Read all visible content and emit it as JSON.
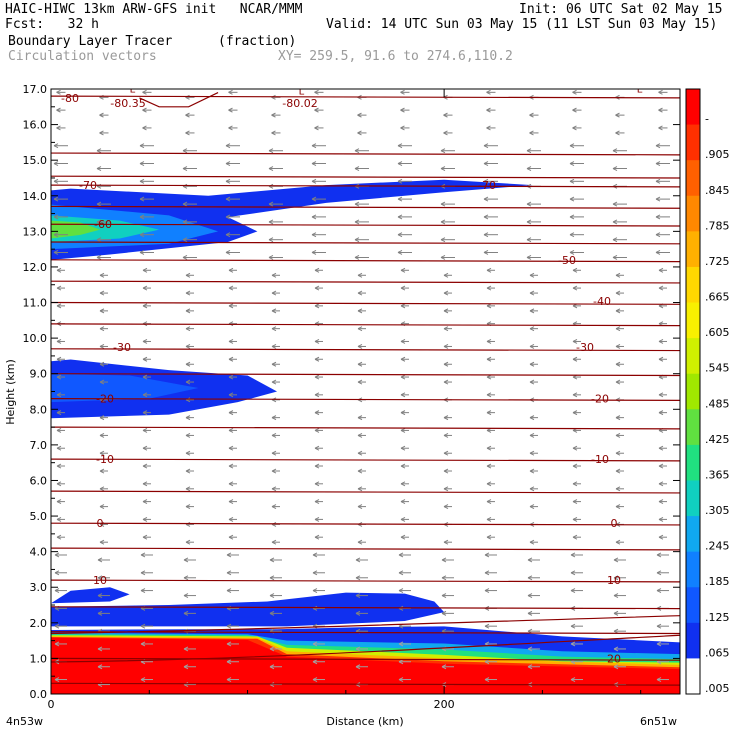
{
  "header": {
    "line1_left": "HAIC-HIWC 13km ARW-GFS init   NCAR/MMM",
    "line1_right": "Init: 06 UTC Sat 02 May 15",
    "line2_left": "Fcst:   32 h",
    "line2_right": "Valid: 14 UTC Sun 03 May 15 (11 LST Sun 03 May 15)",
    "line3_left": "Boundary Layer Tracer",
    "line3_unit": "(fraction)",
    "line4_left": "Circulation vectors",
    "line4_xy": "XY= 259.5, 91.6 to 274.6,110.2"
  },
  "axes": {
    "ylabel": "Height (km)",
    "xlabel": "Distance (km)",
    "x_left": "4n53w",
    "x_right": "6n51w",
    "x_ticks": [
      "0",
      "200"
    ],
    "y_ticks": [
      "0.0",
      "1.0",
      "2.0",
      "3.0",
      "4.0",
      "5.0",
      "6.0",
      "7.0",
      "8.0",
      "9.0",
      "10.0",
      "11.0",
      "12.0",
      "13.0",
      "14.0",
      "15.0",
      "16.0",
      "17.0"
    ]
  },
  "colorbar": {
    "labels": [
      "-",
      ".905",
      ".845",
      ".785",
      ".725",
      ".665",
      ".605",
      ".545",
      ".485",
      ".425",
      ".365",
      ".305",
      ".245",
      ".185",
      ".125",
      ".065",
      ".005"
    ],
    "colors": [
      "#ff0000",
      "#ff3000",
      "#ff6000",
      "#ff8800",
      "#ffb000",
      "#ffd800",
      "#f8f000",
      "#d0f000",
      "#a0e800",
      "#60e040",
      "#20e080",
      "#10d0c0",
      "#10a8f0",
      "#1080ff",
      "#1058ff",
      "#1030f0",
      "#ffffff"
    ]
  },
  "chart_data": {
    "type": "contour",
    "title": "Boundary Layer Tracer",
    "units": "fraction",
    "xlabel": "Distance (km)",
    "ylabel": "Height (km)",
    "xlim": [
      0,
      320
    ],
    "ylim": [
      0,
      17
    ],
    "overlay": "Circulation vectors",
    "temperature_contours": [
      {
        "label": "-80",
        "height_km": 16.8
      },
      {
        "label": "-80.35",
        "height_km": 16.7
      },
      {
        "label": "-80.02",
        "height_km": 16.7
      },
      {
        "label": "-70",
        "height_km": 14.3
      },
      {
        "label": "-60",
        "height_km": 13.2
      },
      {
        "label": "-50",
        "height_km": 12.2
      },
      {
        "label": "-40",
        "height_km": 11.0
      },
      {
        "label": "-30",
        "height_km": 9.7
      },
      {
        "label": "-20",
        "height_km": 8.3
      },
      {
        "label": "-10",
        "height_km": 6.6
      },
      {
        "label": "0",
        "height_km": 4.8
      },
      {
        "label": "10",
        "height_km": 3.2
      },
      {
        "label": "20",
        "height_km": 1.0
      }
    ],
    "tracer_regions": [
      {
        "name": "boundary layer",
        "x_range_km": [
          0,
          320
        ],
        "top_km": 1.8,
        "max_fraction": 0.965
      },
      {
        "name": "upper plume",
        "x_range_km": [
          0,
          240
        ],
        "z_range_km": [
          12.2,
          14.3
        ],
        "max_fraction": 0.425
      },
      {
        "name": "mid plume",
        "x_range_km": [
          0,
          115
        ],
        "z_range_km": [
          7.7,
          9.4
        ],
        "max_fraction": 0.125
      },
      {
        "name": "low plume",
        "x_range_km": [
          0,
          200
        ],
        "z_range_km": [
          1.8,
          3.0
        ],
        "max_fraction": 0.065
      }
    ]
  }
}
